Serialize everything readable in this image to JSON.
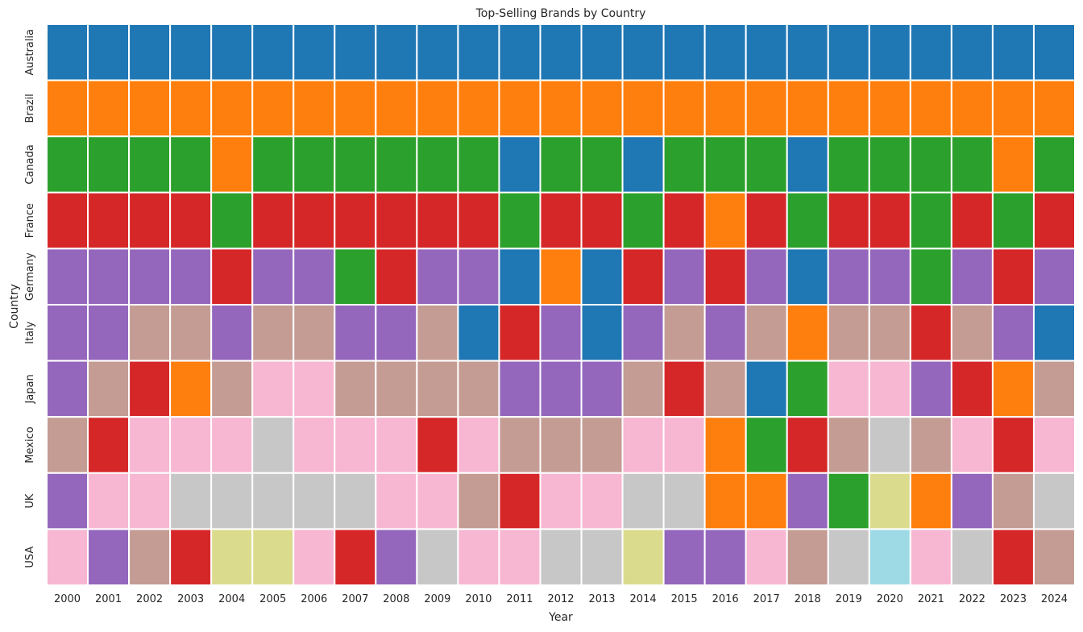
{
  "chart_data": {
    "type": "heatmap",
    "title": "Top-Selling Brands by Country",
    "xlabel": "Year",
    "ylabel": "Country",
    "x": [
      "2000",
      "2001",
      "2002",
      "2003",
      "2004",
      "2005",
      "2006",
      "2007",
      "2008",
      "2009",
      "2010",
      "2011",
      "2012",
      "2013",
      "2014",
      "2015",
      "2016",
      "2017",
      "2018",
      "2019",
      "2020",
      "2021",
      "2022",
      "2023",
      "2024"
    ],
    "y": [
      "Australia",
      "Brazil",
      "Canada",
      "France",
      "Germany",
      "Italy",
      "Japan",
      "Mexico",
      "UK",
      "USA"
    ],
    "palette": [
      "#1f77b4",
      "#ff7f0e",
      "#2ca02c",
      "#d62728",
      "#9467bd",
      "#c49c94",
      "#f7b6d2",
      "#c7c7c7",
      "#dbdb8d",
      "#9edae5"
    ],
    "values": [
      [
        0,
        0,
        0,
        0,
        0,
        0,
        0,
        0,
        0,
        0,
        0,
        0,
        0,
        0,
        0,
        0,
        0,
        0,
        0,
        0,
        0,
        0,
        0,
        0,
        0
      ],
      [
        1,
        1,
        1,
        1,
        1,
        1,
        1,
        1,
        1,
        1,
        1,
        1,
        1,
        1,
        1,
        1,
        1,
        1,
        1,
        1,
        1,
        1,
        1,
        1,
        1
      ],
      [
        2,
        2,
        2,
        2,
        1,
        2,
        2,
        2,
        2,
        2,
        2,
        0,
        2,
        2,
        0,
        2,
        2,
        2,
        0,
        2,
        2,
        2,
        2,
        1,
        2
      ],
      [
        3,
        3,
        3,
        3,
        2,
        3,
        3,
        3,
        3,
        3,
        3,
        2,
        3,
        3,
        2,
        3,
        1,
        3,
        2,
        3,
        3,
        2,
        3,
        2,
        3
      ],
      [
        4,
        4,
        4,
        4,
        3,
        4,
        4,
        2,
        3,
        4,
        4,
        0,
        1,
        0,
        3,
        4,
        3,
        4,
        0,
        4,
        4,
        2,
        4,
        3,
        4
      ],
      [
        4,
        4,
        5,
        5,
        4,
        5,
        5,
        4,
        4,
        5,
        0,
        3,
        4,
        0,
        4,
        5,
        4,
        5,
        1,
        5,
        5,
        3,
        5,
        4,
        0
      ],
      [
        4,
        5,
        3,
        1,
        5,
        6,
        6,
        5,
        5,
        5,
        5,
        4,
        4,
        4,
        5,
        3,
        5,
        0,
        2,
        6,
        6,
        4,
        3,
        1,
        5
      ],
      [
        5,
        3,
        6,
        6,
        6,
        7,
        6,
        6,
        6,
        3,
        6,
        5,
        5,
        5,
        6,
        6,
        1,
        2,
        3,
        5,
        7,
        5,
        6,
        3,
        6
      ],
      [
        4,
        6,
        6,
        7,
        7,
        7,
        7,
        7,
        6,
        6,
        5,
        3,
        6,
        6,
        7,
        7,
        1,
        1,
        4,
        2,
        8,
        1,
        4,
        5,
        7
      ],
      [
        6,
        4,
        5,
        3,
        8,
        8,
        6,
        3,
        4,
        7,
        6,
        6,
        7,
        7,
        8,
        4,
        4,
        6,
        5,
        7,
        9,
        6,
        7,
        3,
        5
      ]
    ]
  }
}
